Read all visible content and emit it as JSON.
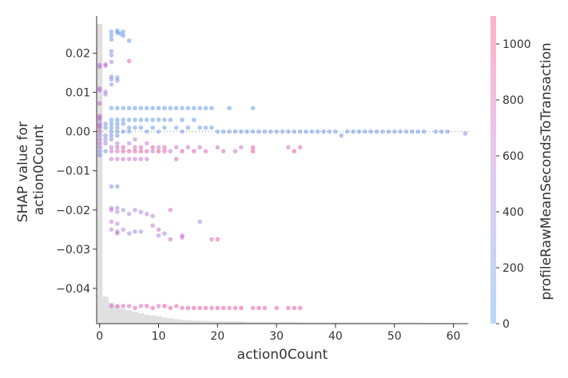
{
  "chart_data": {
    "type": "scatter",
    "title": "",
    "xlabel": "action0Count",
    "ylabel": [
      "SHAP value for",
      "action0Count"
    ],
    "colorbar_label": "profileRawMeanSecondsToTransaction",
    "xlim": [
      -0.5,
      62.5
    ],
    "ylim": [
      -0.049,
      0.0295
    ],
    "x_ticks": [
      0,
      10,
      20,
      30,
      40,
      50,
      60
    ],
    "x_tick_labels": [
      "0",
      "10",
      "20",
      "30",
      "40",
      "50",
      "60"
    ],
    "y_ticks": [
      0.02,
      0.01,
      0.0,
      -0.01,
      -0.02,
      -0.03,
      -0.04
    ],
    "y_tick_labels": [
      "0.02",
      "0.01",
      "0.00",
      "−0.01",
      "−0.02",
      "−0.03",
      "−0.04"
    ],
    "colorbar_range": [
      0,
      1100
    ],
    "colorbar_ticks": [
      0,
      200,
      400,
      600,
      800,
      1000
    ],
    "colorbar_tick_labels": [
      "0",
      "200",
      "400",
      "600",
      "800",
      "1000"
    ],
    "colormap": {
      "low": "#1e88e5",
      "mid": "#a55ed3",
      "high": "#ff0d57"
    },
    "zero_line": 0.0,
    "histogram": {
      "bins": [
        0,
        1,
        2,
        3,
        4,
        5,
        6,
        7,
        8,
        9,
        10,
        11,
        12,
        13,
        14,
        16,
        18,
        20,
        25,
        30,
        35,
        40,
        45,
        50,
        55,
        60
      ],
      "relative_heights": [
        1.0,
        0.09,
        0.07,
        0.06,
        0.05,
        0.045,
        0.04,
        0.035,
        0.03,
        0.028,
        0.025,
        0.02,
        0.018,
        0.015,
        0.012,
        0.01,
        0.009,
        0.008,
        0.006,
        0.005,
        0.004,
        0.004,
        0.003,
        0.003,
        0.002,
        0.002
      ]
    },
    "points": [
      [
        2,
        0.0255,
        150
      ],
      [
        2,
        0.0245,
        120
      ],
      [
        2,
        0.0235,
        180
      ],
      [
        3,
        0.0258,
        140
      ],
      [
        3,
        0.0252,
        100
      ],
      [
        3.5,
        0.025,
        160
      ],
      [
        4,
        0.0255,
        130
      ],
      [
        4,
        0.0245,
        200
      ],
      [
        5,
        0.0232,
        150
      ],
      [
        2,
        0.0205,
        300
      ],
      [
        2,
        0.0195,
        250
      ],
      [
        0,
        0.017,
        600
      ],
      [
        0,
        0.0165,
        550
      ],
      [
        1,
        0.0172,
        500
      ],
      [
        1,
        0.0168,
        620
      ],
      [
        2,
        0.0178,
        450
      ],
      [
        5,
        0.018,
        850
      ],
      [
        2,
        0.014,
        300
      ],
      [
        2,
        0.0133,
        250
      ],
      [
        3,
        0.0138,
        200
      ],
      [
        3,
        0.013,
        350
      ],
      [
        2,
        0.012,
        400
      ],
      [
        0,
        0.011,
        650
      ],
      [
        0,
        0.0105,
        580
      ],
      [
        1,
        0.0102,
        520
      ],
      [
        1,
        0.0095,
        480
      ],
      [
        0,
        0.0072,
        700
      ],
      [
        0,
        0.004,
        700
      ],
      [
        0,
        0.0035,
        650
      ],
      [
        0,
        0.003,
        500
      ],
      [
        0,
        0.002,
        600
      ],
      [
        0,
        0.0015,
        550
      ],
      [
        0,
        0.001,
        700
      ],
      [
        0,
        0.0,
        650
      ],
      [
        0,
        -0.001,
        500
      ],
      [
        0,
        -0.002,
        600
      ],
      [
        0,
        -0.003,
        550
      ],
      [
        0,
        -0.004,
        500
      ],
      [
        0,
        -0.005,
        300
      ],
      [
        0,
        -0.006,
        250
      ],
      [
        1,
        0.002,
        200
      ],
      [
        1,
        0.001,
        150
      ],
      [
        1,
        -0.001,
        300
      ],
      [
        1,
        -0.002,
        250
      ],
      [
        1,
        -0.003,
        400
      ],
      [
        1,
        -0.005,
        200
      ],
      [
        2,
        0.006,
        120
      ],
      [
        2,
        0.003,
        100
      ],
      [
        2,
        0.002,
        150
      ],
      [
        2,
        0.001,
        180
      ],
      [
        2,
        0.0,
        200
      ],
      [
        2,
        -0.001,
        220
      ],
      [
        2,
        -0.002,
        300
      ],
      [
        2,
        -0.004,
        550
      ],
      [
        2,
        -0.005,
        700
      ],
      [
        2,
        -0.007,
        650
      ],
      [
        3,
        0.006,
        100
      ],
      [
        3,
        0.003,
        120
      ],
      [
        3,
        0.002,
        130
      ],
      [
        3,
        0.001,
        150
      ],
      [
        3,
        0.0,
        170
      ],
      [
        3,
        -0.001,
        200
      ],
      [
        3,
        -0.003,
        400
      ],
      [
        3,
        -0.004,
        700
      ],
      [
        3,
        -0.005,
        800
      ],
      [
        3,
        -0.007,
        600
      ],
      [
        4,
        0.006,
        110
      ],
      [
        4,
        0.003,
        130
      ],
      [
        4,
        0.002,
        100
      ],
      [
        4,
        0.0,
        150
      ],
      [
        4,
        -0.004,
        850
      ],
      [
        4,
        -0.005,
        900
      ],
      [
        4,
        -0.007,
        700
      ],
      [
        5,
        0.006,
        100
      ],
      [
        5,
        0.003,
        150
      ],
      [
        5,
        0.001,
        120
      ],
      [
        5,
        0.0,
        200
      ],
      [
        5,
        -0.003,
        450
      ],
      [
        5,
        -0.005,
        950
      ],
      [
        5,
        -0.007,
        600
      ],
      [
        6,
        0.006,
        130
      ],
      [
        6,
        0.003,
        100
      ],
      [
        6,
        0.001,
        160
      ],
      [
        6,
        -0.002,
        500
      ],
      [
        6,
        -0.004,
        700
      ],
      [
        6,
        -0.005,
        900
      ],
      [
        6,
        -0.007,
        650
      ],
      [
        7,
        0.006,
        120
      ],
      [
        7,
        0.003,
        150
      ],
      [
        7,
        0.001,
        180
      ],
      [
        7,
        -0.004,
        800
      ],
      [
        7,
        -0.005,
        950
      ],
      [
        7,
        -0.007,
        600
      ],
      [
        8,
        0.006,
        100
      ],
      [
        8,
        0.003,
        140
      ],
      [
        8,
        0.0,
        200
      ],
      [
        8,
        -0.003,
        600
      ],
      [
        8,
        -0.005,
        850
      ],
      [
        8,
        -0.007,
        700
      ],
      [
        9,
        0.006,
        110
      ],
      [
        9,
        0.003,
        120
      ],
      [
        9,
        0.001,
        100
      ],
      [
        9,
        -0.004,
        900
      ],
      [
        9,
        -0.005,
        700
      ],
      [
        10,
        0.006,
        150
      ],
      [
        10,
        0.003,
        130
      ],
      [
        10,
        0.0,
        180
      ],
      [
        10,
        -0.004,
        650
      ],
      [
        10,
        -0.005,
        950
      ],
      [
        11,
        0.006,
        120
      ],
      [
        11,
        0.003,
        100
      ],
      [
        11,
        0.001,
        140
      ],
      [
        11,
        -0.004,
        750
      ],
      [
        11,
        -0.005,
        850
      ],
      [
        12,
        0.006,
        150
      ],
      [
        12,
        0.003,
        120
      ],
      [
        12,
        -0.005,
        700
      ],
      [
        13,
        0.006,
        100
      ],
      [
        13,
        0.001,
        200
      ],
      [
        13,
        -0.004,
        650
      ],
      [
        13,
        -0.007,
        800
      ],
      [
        14,
        0.006,
        130
      ],
      [
        14,
        0.003,
        150
      ],
      [
        14,
        0.0,
        200
      ],
      [
        14,
        -0.005,
        900
      ],
      [
        15,
        0.006,
        140
      ],
      [
        15,
        0.001,
        120
      ],
      [
        15,
        -0.004,
        700
      ],
      [
        16,
        0.006,
        100
      ],
      [
        16,
        0.003,
        130
      ],
      [
        16,
        -0.005,
        850
      ],
      [
        17,
        0.006,
        150
      ],
      [
        17,
        0.001,
        160
      ],
      [
        17,
        -0.004,
        650
      ],
      [
        18,
        0.006,
        110
      ],
      [
        18,
        0.001,
        200
      ],
      [
        18,
        -0.005,
        750
      ],
      [
        19,
        0.006,
        130
      ],
      [
        19,
        0.001,
        140
      ],
      [
        20,
        0.0,
        150
      ],
      [
        20,
        -0.004,
        700
      ],
      [
        21,
        0.0,
        120
      ],
      [
        21,
        -0.005,
        800
      ],
      [
        22,
        0.006,
        100
      ],
      [
        22,
        0.0,
        160
      ],
      [
        23,
        0.0,
        130
      ],
      [
        23,
        -0.005,
        700
      ],
      [
        24,
        0.0,
        150
      ],
      [
        24,
        -0.004,
        650
      ],
      [
        25,
        0.0,
        140
      ],
      [
        26,
        0.006,
        120
      ],
      [
        26,
        0.0,
        150
      ],
      [
        26,
        -0.004,
        900
      ],
      [
        26,
        -0.005,
        1000
      ],
      [
        27,
        0.0,
        180
      ],
      [
        28,
        0.0,
        130
      ],
      [
        29,
        0.0,
        200
      ],
      [
        30,
        0.0,
        150
      ],
      [
        31,
        0.0,
        140
      ],
      [
        32,
        0.0,
        170
      ],
      [
        32,
        -0.004,
        700
      ],
      [
        33,
        0.0,
        120
      ],
      [
        33,
        -0.005,
        900
      ],
      [
        34,
        0.0,
        160
      ],
      [
        34,
        -0.004,
        800
      ],
      [
        35,
        0.0,
        150
      ],
      [
        36,
        0.0,
        130
      ],
      [
        37,
        0.0,
        190
      ],
      [
        38,
        0.0,
        140
      ],
      [
        39,
        0.0,
        160
      ],
      [
        40,
        0.0,
        220
      ],
      [
        41,
        -0.001,
        180
      ],
      [
        42,
        0.0,
        200
      ],
      [
        43,
        0.0,
        140
      ],
      [
        44,
        0.0,
        120
      ],
      [
        45,
        0.0,
        150
      ],
      [
        46,
        0.0,
        130
      ],
      [
        47,
        0.0,
        180
      ],
      [
        48,
        0.0,
        200
      ],
      [
        49,
        0.0,
        140
      ],
      [
        50,
        0.0,
        160
      ],
      [
        51,
        0.0,
        190
      ],
      [
        52,
        0.0,
        170
      ],
      [
        53,
        0.0,
        130
      ],
      [
        54,
        0.0,
        160
      ],
      [
        55,
        0.0,
        150
      ],
      [
        57,
        0.0,
        180
      ],
      [
        58,
        0.0,
        140
      ],
      [
        59,
        0.0,
        200
      ],
      [
        62,
        -0.0005,
        250
      ],
      [
        2,
        -0.014,
        300
      ],
      [
        3,
        -0.014,
        250
      ],
      [
        2,
        -0.02,
        550
      ],
      [
        2,
        -0.0195,
        600
      ],
      [
        3,
        -0.0195,
        450
      ],
      [
        3,
        -0.0205,
        500
      ],
      [
        4,
        -0.02,
        400
      ],
      [
        5,
        -0.021,
        550
      ],
      [
        6,
        -0.02,
        450
      ],
      [
        7,
        -0.0205,
        400
      ],
      [
        8,
        -0.021,
        550
      ],
      [
        9,
        -0.0215,
        450
      ],
      [
        12,
        -0.02,
        700
      ],
      [
        2,
        -0.023,
        600
      ],
      [
        3,
        -0.0235,
        500
      ],
      [
        2,
        -0.025,
        550
      ],
      [
        3,
        -0.0255,
        600
      ],
      [
        3,
        -0.026,
        650
      ],
      [
        4,
        -0.025,
        500
      ],
      [
        5,
        -0.026,
        400
      ],
      [
        6,
        -0.0255,
        450
      ],
      [
        7,
        -0.0255,
        350
      ],
      [
        9,
        -0.024,
        600
      ],
      [
        10,
        -0.025,
        700
      ],
      [
        10,
        -0.0265,
        500
      ],
      [
        11,
        -0.026,
        450
      ],
      [
        12,
        -0.0275,
        800
      ],
      [
        14,
        -0.027,
        650
      ],
      [
        14,
        -0.0265,
        550
      ],
      [
        17,
        -0.023,
        300
      ],
      [
        19,
        -0.0275,
        750
      ],
      [
        20,
        -0.0275,
        900
      ],
      [
        2,
        -0.0445,
        700
      ],
      [
        3,
        -0.0445,
        800
      ],
      [
        4,
        -0.0445,
        850
      ],
      [
        5,
        -0.0445,
        750
      ],
      [
        6,
        -0.045,
        900
      ],
      [
        7,
        -0.0445,
        700
      ],
      [
        8,
        -0.0445,
        900
      ],
      [
        9,
        -0.045,
        850
      ],
      [
        10,
        -0.0445,
        700
      ],
      [
        11,
        -0.0445,
        1000
      ],
      [
        12,
        -0.045,
        900
      ],
      [
        13,
        -0.0445,
        750
      ],
      [
        14,
        -0.045,
        850
      ],
      [
        15,
        -0.045,
        900
      ],
      [
        16,
        -0.045,
        950
      ],
      [
        17,
        -0.045,
        1000
      ],
      [
        18,
        -0.045,
        900
      ],
      [
        19,
        -0.045,
        850
      ],
      [
        20,
        -0.045,
        1000
      ],
      [
        21,
        -0.045,
        950
      ],
      [
        22,
        -0.045,
        900
      ],
      [
        23,
        -0.045,
        850
      ],
      [
        24,
        -0.045,
        950
      ],
      [
        26,
        -0.045,
        900
      ],
      [
        27,
        -0.045,
        950
      ],
      [
        28,
        -0.045,
        850
      ],
      [
        30,
        -0.045,
        900
      ],
      [
        32,
        -0.045,
        850
      ],
      [
        33,
        -0.045,
        950
      ],
      [
        34,
        -0.045,
        900
      ]
    ]
  }
}
